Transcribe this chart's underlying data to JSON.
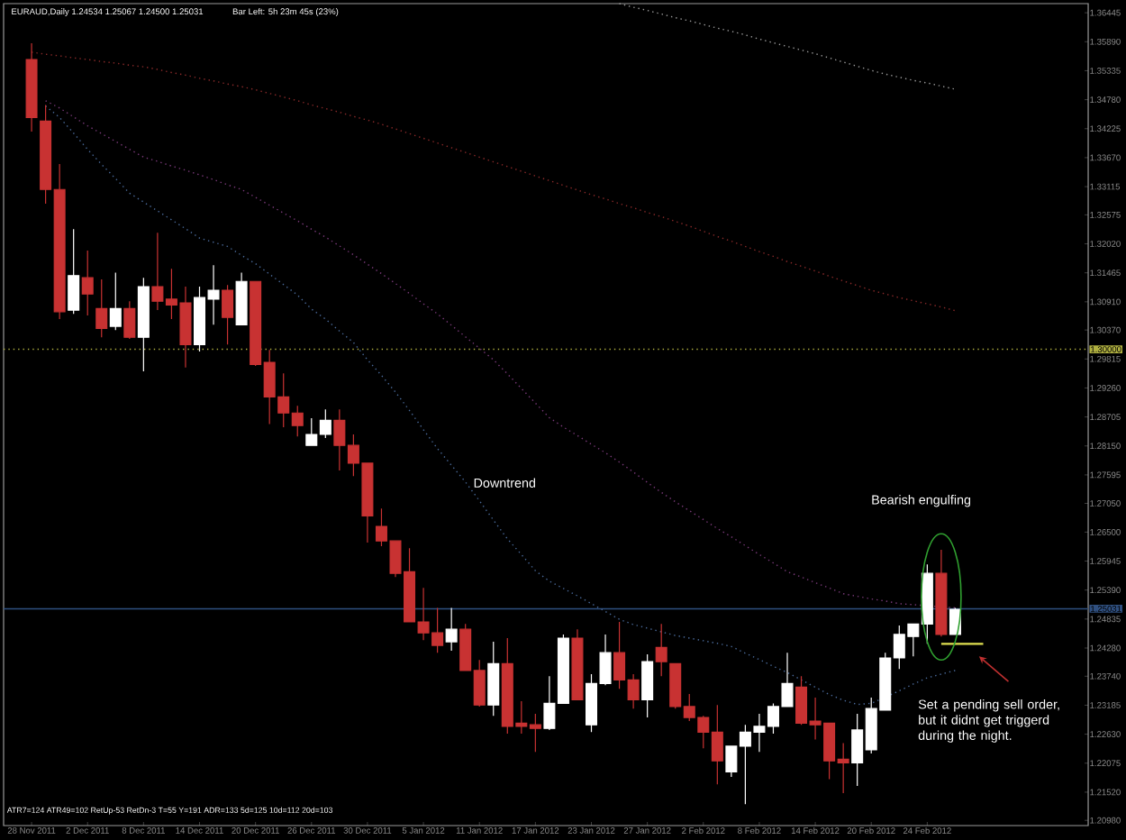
{
  "chart_data": {
    "type": "candlestick",
    "title": "EURAUD,Daily 1.24534 1.25067 1.24500 1.25031",
    "subtitle": "Bar Left: 5h 23m 45s (23%)",
    "categories": [
      "28 Nov 2011",
      null,
      null,
      null,
      "2 Dec 2011",
      null,
      null,
      null,
      "8 Dec 2011",
      null,
      null,
      null,
      "14 Dec 2011",
      null,
      null,
      null,
      "20 Dec 2011",
      null,
      null,
      null,
      "26 Dec 2011",
      null,
      null,
      null,
      "30 Dec 2011",
      null,
      null,
      null,
      "5 Jan 2012",
      null,
      null,
      null,
      "11 Jan 2012",
      null,
      null,
      null,
      "17 Jan 2012",
      null,
      null,
      null,
      "23 Jan 2012",
      null,
      null,
      null,
      "27 Jan 2012",
      null,
      null,
      null,
      "2 Feb 2012",
      null,
      null,
      null,
      "8 Feb 2012",
      null,
      null,
      null,
      "14 Feb 2012",
      null,
      null,
      null,
      "20 Feb 2012",
      null,
      null,
      null,
      "24 Feb 2012",
      null,
      null,
      null,
      null,
      null
    ],
    "ohlc": [
      [
        1.3555,
        1.3586,
        1.3417,
        1.3444
      ],
      [
        1.3437,
        1.3468,
        1.3279,
        1.3306
      ],
      [
        1.3306,
        1.3355,
        1.3058,
        1.3072
      ],
      [
        1.3075,
        1.323,
        1.3068,
        1.3141
      ],
      [
        1.3137,
        1.3189,
        1.3065,
        1.3106
      ],
      [
        1.3078,
        1.3134,
        1.3023,
        1.304
      ],
      [
        1.3044,
        1.3147,
        1.3037,
        1.3078
      ],
      [
        1.3078,
        1.3092,
        1.302,
        1.3023
      ],
      [
        1.3023,
        1.3137,
        1.2958,
        1.312
      ],
      [
        1.312,
        1.3223,
        1.3075,
        1.3092
      ],
      [
        1.3096,
        1.3154,
        1.3058,
        1.3085
      ],
      [
        1.3089,
        1.312,
        1.2965,
        1.3009
      ],
      [
        1.3009,
        1.312,
        1.2996,
        1.3099
      ],
      [
        1.3096,
        1.3161,
        1.3047,
        1.3113
      ],
      [
        1.3113,
        1.3123,
        1.3009,
        1.3061
      ],
      [
        1.3047,
        1.3147,
        1.3047,
        1.313
      ],
      [
        1.313,
        1.313,
        1.2968,
        1.2971
      ],
      [
        1.2975,
        1.2999,
        1.2857,
        1.2909
      ],
      [
        1.2909,
        1.2954,
        1.2851,
        1.2878
      ],
      [
        1.2878,
        1.2892,
        1.2833,
        1.2854
      ],
      [
        1.2816,
        1.2868,
        1.2816,
        1.2837
      ],
      [
        1.2837,
        1.2885,
        1.283,
        1.2864
      ],
      [
        1.2864,
        1.2885,
        1.2768,
        1.2816
      ],
      [
        1.2816,
        1.2837,
        1.2757,
        1.2782
      ],
      [
        1.2782,
        1.2782,
        1.263,
        1.2681
      ],
      [
        1.2661,
        1.2695,
        1.2623,
        1.2633
      ],
      [
        1.2633,
        1.2633,
        1.2564,
        1.2571
      ],
      [
        1.2574,
        1.2619,
        1.2478,
        1.2478
      ],
      [
        1.2478,
        1.2543,
        1.2443,
        1.2457
      ],
      [
        1.2457,
        1.2505,
        1.2419,
        1.2433
      ],
      [
        1.244,
        1.2505,
        1.2423,
        1.2464
      ],
      [
        1.2464,
        1.2474,
        1.2385,
        1.2385
      ],
      [
        1.2385,
        1.2405,
        1.2316,
        1.2319
      ],
      [
        1.2319,
        1.244,
        1.2298,
        1.2398
      ],
      [
        1.2398,
        1.2447,
        1.2264,
        1.2278
      ],
      [
        1.2284,
        1.2326,
        1.2264,
        1.2278
      ],
      [
        1.2281,
        1.2302,
        1.2229,
        1.2274
      ],
      [
        1.2274,
        1.2374,
        1.2271,
        1.2322
      ],
      [
        1.2322,
        1.2454,
        1.2322,
        1.2447
      ],
      [
        1.2447,
        1.2464,
        1.2329,
        1.2329
      ],
      [
        1.2281,
        1.2378,
        1.2267,
        1.236
      ],
      [
        1.236,
        1.2454,
        1.2357,
        1.2419
      ],
      [
        1.2419,
        1.2478,
        1.235,
        1.2367
      ],
      [
        1.2367,
        1.2378,
        1.2312,
        1.2329
      ],
      [
        1.2329,
        1.2416,
        1.2295,
        1.2402
      ],
      [
        1.2429,
        1.2474,
        1.2374,
        1.2402
      ],
      [
        1.2398,
        1.2398,
        1.2312,
        1.2316
      ],
      [
        1.2316,
        1.234,
        1.2288,
        1.2295
      ],
      [
        1.2295,
        1.2298,
        1.2236,
        1.2267
      ],
      [
        1.2267,
        1.2319,
        1.2167,
        1.2212
      ],
      [
        1.2191,
        1.224,
        1.2181,
        1.224
      ],
      [
        1.224,
        1.2281,
        1.2129,
        1.2267
      ],
      [
        1.2267,
        1.2302,
        1.2229,
        1.2278
      ],
      [
        1.2278,
        1.2322,
        1.2264,
        1.2316
      ],
      [
        1.2316,
        1.2419,
        1.2316,
        1.236
      ],
      [
        1.2353,
        1.2374,
        1.2281,
        1.2284
      ],
      [
        1.2288,
        1.2333,
        1.2253,
        1.2281
      ],
      [
        1.2284,
        1.2284,
        1.2177,
        1.2212
      ],
      [
        1.2215,
        1.2246,
        1.215,
        1.2208
      ],
      [
        1.2208,
        1.2302,
        1.2164,
        1.2271
      ],
      [
        1.2233,
        1.2333,
        1.2226,
        1.2312
      ],
      [
        1.2309,
        1.2419,
        1.2309,
        1.2409
      ],
      [
        1.2409,
        1.2471,
        1.2388,
        1.2454
      ],
      [
        1.245,
        1.2474,
        1.2412,
        1.2474
      ],
      [
        1.2474,
        1.2588,
        1.2436,
        1.2571
      ],
      [
        1.2571,
        1.2616,
        1.245,
        1.2454
      ],
      [
        1.2454,
        1.2505,
        1.2454,
        1.2502
      ],
      null,
      null,
      null
    ],
    "series": [
      {
        "type": "line",
        "color": "#9a9a9a",
        "line_style": "dotted",
        "values": [
          null,
          null,
          null,
          null,
          null,
          null,
          null,
          null,
          null,
          null,
          null,
          null,
          null,
          null,
          null,
          null,
          null,
          null,
          null,
          null,
          null,
          null,
          null,
          null,
          null,
          null,
          null,
          null,
          null,
          null,
          null,
          null,
          null,
          null,
          null,
          null,
          null,
          null,
          null,
          null,
          null,
          null,
          1.3662,
          1.3655,
          1.3649,
          1.3642,
          1.3635,
          1.3629,
          1.3622,
          1.3615,
          1.3609,
          1.3602,
          1.3594,
          1.3587,
          1.358,
          1.3573,
          1.3566,
          1.3558,
          1.355,
          1.3542,
          1.3534,
          1.3527,
          1.3521,
          1.3515,
          1.351,
          1.3504,
          1.3498,
          null,
          null,
          null
        ]
      },
      {
        "type": "line",
        "color": "#8b2a2a",
        "line_style": "dotted",
        "values": [
          1.3569,
          1.3565,
          1.3562,
          1.3558,
          1.3555,
          1.3551,
          1.3548,
          1.3544,
          1.3541,
          1.3536,
          1.353,
          1.3525,
          1.3519,
          1.3514,
          1.3508,
          1.3503,
          1.3497,
          1.349,
          1.3483,
          1.3476,
          1.3468,
          1.3461,
          1.3454,
          1.3446,
          1.3439,
          1.3431,
          1.3422,
          1.3413,
          1.3404,
          1.3395,
          1.3386,
          1.3377,
          1.3368,
          1.3359,
          1.335,
          1.3341,
          1.3332,
          1.3323,
          1.3314,
          1.3305,
          1.3296,
          1.3288,
          1.3279,
          1.3271,
          1.3262,
          1.3254,
          1.3245,
          1.3236,
          1.3226,
          1.3216,
          1.3207,
          1.3197,
          1.3187,
          1.3178,
          1.3168,
          1.3159,
          1.315,
          1.314,
          1.3131,
          1.3122,
          1.3113,
          1.3106,
          1.3099,
          1.3093,
          1.3087,
          1.3081,
          1.3074,
          null,
          null,
          null
        ]
      },
      {
        "type": "line",
        "color": "#7a3a7a",
        "line_style": "dotted",
        "values": [
          null,
          1.3476,
          1.3462,
          1.3445,
          1.3428,
          1.3413,
          1.3398,
          1.3383,
          1.3368,
          1.336,
          1.3351,
          1.3343,
          1.3334,
          1.3325,
          1.3315,
          1.3306,
          1.3291,
          1.3276,
          1.3261,
          1.3246,
          1.323,
          1.3215,
          1.3198,
          1.3181,
          1.3163,
          1.3145,
          1.3126,
          1.3107,
          1.3087,
          1.3068,
          1.3046,
          1.3024,
          1.3002,
          1.298,
          1.2953,
          1.2925,
          1.2897,
          1.2869,
          1.2851,
          1.2835,
          1.2818,
          1.2802,
          1.2784,
          1.2765,
          1.2745,
          1.2726,
          1.2708,
          1.2691,
          1.2674,
          1.2657,
          1.2641,
          1.2624,
          1.2607,
          1.2591,
          1.2574,
          1.2564,
          1.2553,
          1.2543,
          1.2532,
          1.2527,
          1.2522,
          1.2518,
          1.2513,
          1.2511,
          1.2509,
          1.2507,
          1.2505,
          null,
          null,
          null
        ]
      },
      {
        "type": "line",
        "color": "#4a6a9a",
        "line_style": "dotted",
        "values": [
          null,
          1.3466,
          1.3444,
          1.3414,
          1.3383,
          1.3354,
          1.3327,
          1.3299,
          1.3282,
          1.3265,
          1.3248,
          1.3231,
          1.3213,
          1.3205,
          1.3197,
          1.318,
          1.3164,
          1.3144,
          1.3124,
          1.3104,
          1.3077,
          1.3058,
          1.3035,
          1.3013,
          1.298,
          1.295,
          1.2918,
          1.2883,
          1.2846,
          1.281,
          1.2778,
          1.2746,
          1.271,
          1.2673,
          1.2637,
          1.2607,
          1.2576,
          1.2556,
          1.2542,
          1.2528,
          1.2513,
          1.2498,
          1.2483,
          1.2473,
          1.2466,
          1.2459,
          1.2452,
          1.2447,
          1.2442,
          1.2437,
          1.2431,
          1.2418,
          1.2406,
          1.2393,
          1.2381,
          1.2367,
          1.2353,
          1.2339,
          1.2328,
          1.232,
          1.2322,
          1.2334,
          1.2346,
          1.2359,
          1.2371,
          1.2378,
          1.2385,
          null,
          null,
          null
        ]
      },
      {
        "type": "line",
        "color": "#e0e050",
        "line_style": "solid",
        "values": [
          null,
          null,
          null,
          null,
          null,
          null,
          null,
          null,
          null,
          null,
          null,
          null,
          null,
          null,
          null,
          null,
          null,
          null,
          null,
          null,
          null,
          null,
          null,
          null,
          null,
          null,
          null,
          null,
          null,
          null,
          null,
          null,
          null,
          null,
          null,
          null,
          null,
          null,
          null,
          null,
          null,
          null,
          null,
          null,
          null,
          null,
          null,
          null,
          null,
          null,
          null,
          null,
          null,
          null,
          null,
          null,
          null,
          null,
          null,
          null,
          null,
          null,
          null,
          null,
          null,
          1.2436,
          1.2436,
          1.2436,
          1.2436,
          null
        ]
      }
    ],
    "ref_lines": [
      {
        "axis": "y",
        "value": 1.3,
        "label": "1.30000",
        "color": "#b0b040",
        "line_style": "dotted"
      },
      {
        "axis": "y",
        "value": 1.25031,
        "label": "1.25031",
        "color": "#2f4f7f",
        "line_style": "solid"
      }
    ],
    "ylim": [
      1.2088,
      1.3662
    ],
    "yticks": [
      {
        "value": 1.36445,
        "label": "1.36445"
      },
      {
        "value": 1.3589,
        "label": "1.35890"
      },
      {
        "value": 1.35335,
        "label": "1.35335"
      },
      {
        "value": 1.3478,
        "label": "1.34780"
      },
      {
        "value": 1.34225,
        "label": "1.34225"
      },
      {
        "value": 1.3367,
        "label": "1.33670"
      },
      {
        "value": 1.33115,
        "label": "1.33115"
      },
      {
        "value": 1.32575,
        "label": "1.32575"
      },
      {
        "value": 1.3202,
        "label": "1.32020"
      },
      {
        "value": 1.31465,
        "label": "1.31465"
      },
      {
        "value": 1.3091,
        "label": "1.30910"
      },
      {
        "value": 1.3037,
        "label": "1.30370"
      },
      {
        "value": 1.29815,
        "label": "1.29815"
      },
      {
        "value": 1.2926,
        "label": "1.29260"
      },
      {
        "value": 1.28705,
        "label": "1.28705"
      },
      {
        "value": 1.2815,
        "label": "1.28150"
      },
      {
        "value": 1.27595,
        "label": "1.27595"
      },
      {
        "value": 1.2705,
        "label": "1.27050"
      },
      {
        "value": 1.265,
        "label": "1.26500"
      },
      {
        "value": 1.25945,
        "label": "1.25945"
      },
      {
        "value": 1.2539,
        "label": "1.25390"
      },
      {
        "value": 1.24835,
        "label": "1.24835"
      },
      {
        "value": 1.2428,
        "label": "1.24280"
      },
      {
        "value": 1.2374,
        "label": "1.23740"
      },
      {
        "value": 1.23185,
        "label": "1.23185"
      },
      {
        "value": 1.2263,
        "label": "1.22630"
      },
      {
        "value": 1.22075,
        "label": "1.22075"
      },
      {
        "value": 1.2152,
        "label": "1.21520"
      },
      {
        "value": 1.2098,
        "label": "1.20980"
      }
    ],
    "annotations": [
      "Downtrend",
      "Bearish engulfing",
      "Set a pending sell order, but it didnt get triggerd during the night.",
      "ATR7=124 ATR49=102   RetUp-53  RetDn-3    T=55    Y=191  ADR=133  5d=125  10d=112  20d=103"
    ]
  }
}
